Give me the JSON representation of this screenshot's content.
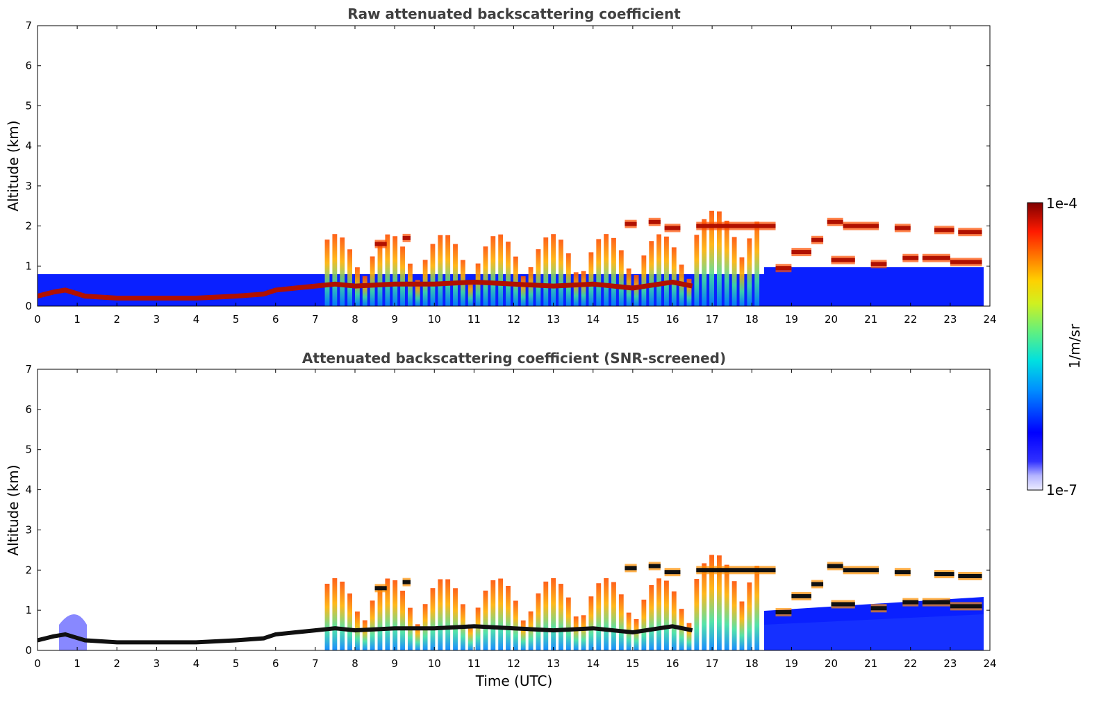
{
  "chart_data": [
    {
      "type": "heatmap",
      "title": "Raw attenuated backscattering coefficient",
      "xlabel": "",
      "ylabel": "Altitude (km)",
      "xlim": [
        0,
        24
      ],
      "ylim": [
        0,
        7
      ],
      "xticks": [
        "0",
        "1",
        "2",
        "3",
        "4",
        "5",
        "6",
        "7",
        "8",
        "9",
        "10",
        "11",
        "12",
        "13",
        "14",
        "15",
        "16",
        "17",
        "18",
        "19",
        "20",
        "21",
        "22",
        "23",
        "24"
      ],
      "yticks": [
        "0",
        "1",
        "2",
        "3",
        "4",
        "5",
        "6",
        "7"
      ],
      "boundary_layer_top_km": [
        [
          0,
          0.25
        ],
        [
          0.4,
          0.35
        ],
        [
          0.7,
          0.4
        ],
        [
          1.2,
          0.25
        ],
        [
          2,
          0.2
        ],
        [
          3,
          0.2
        ],
        [
          4,
          0.2
        ],
        [
          5,
          0.25
        ],
        [
          5.7,
          0.3
        ],
        [
          6,
          0.4
        ],
        [
          6.5,
          0.45
        ],
        [
          7,
          0.5
        ],
        [
          7.5,
          0.55
        ],
        [
          8,
          0.5
        ],
        [
          9,
          0.55
        ],
        [
          10,
          0.55
        ],
        [
          11,
          0.6
        ],
        [
          12,
          0.55
        ],
        [
          13,
          0.5
        ],
        [
          14,
          0.55
        ],
        [
          15,
          0.45
        ],
        [
          16,
          0.6
        ],
        [
          16.5,
          0.5
        ]
      ],
      "cloud_segments": [
        {
          "x": [
            16.6,
            18.6
          ],
          "y": 2.0
        },
        {
          "x": [
            19.9,
            20.3
          ],
          "y": 2.1
        },
        {
          "x": [
            20.3,
            21.2
          ],
          "y": 2.0
        },
        {
          "x": [
            21.6,
            22.0
          ],
          "y": 1.95
        },
        {
          "x": [
            22.6,
            23.1
          ],
          "y": 1.9
        },
        {
          "x": [
            23.2,
            23.8
          ],
          "y": 1.85
        },
        {
          "x": [
            14.8,
            15.1
          ],
          "y": 2.05
        },
        {
          "x": [
            15.4,
            15.7
          ],
          "y": 2.1
        },
        {
          "x": [
            15.8,
            16.2
          ],
          "y": 1.95
        },
        {
          "x": [
            8.5,
            8.8
          ],
          "y": 1.55
        },
        {
          "x": [
            9.2,
            9.4
          ],
          "y": 1.7
        },
        {
          "x": [
            19.5,
            19.8
          ],
          "y": 1.65
        },
        {
          "x": [
            19.0,
            19.5
          ],
          "y": 1.35
        },
        {
          "x": [
            20.0,
            20.6
          ],
          "y": 1.15
        },
        {
          "x": [
            21.0,
            21.4
          ],
          "y": 1.05
        },
        {
          "x": [
            21.8,
            22.2
          ],
          "y": 1.2
        },
        {
          "x": [
            22.3,
            23.0
          ],
          "y": 1.2
        },
        {
          "x": [
            23.0,
            23.8
          ],
          "y": 1.1
        },
        {
          "x": [
            18.6,
            19.0
          ],
          "y": 0.95
        }
      ]
    },
    {
      "type": "heatmap",
      "title": "Attenuated backscattering coefficient (SNR-screened)",
      "xlabel": "Time (UTC)",
      "ylabel": "Altitude (km)",
      "xlim": [
        0,
        24
      ],
      "ylim": [
        0,
        7
      ],
      "xticks": [
        "0",
        "1",
        "2",
        "3",
        "4",
        "5",
        "6",
        "7",
        "8",
        "9",
        "10",
        "11",
        "12",
        "13",
        "14",
        "15",
        "16",
        "17",
        "18",
        "19",
        "20",
        "21",
        "22",
        "23",
        "24"
      ],
      "yticks": [
        "0",
        "1",
        "2",
        "3",
        "4",
        "5",
        "6",
        "7"
      ]
    }
  ],
  "colorbar": {
    "label": "1/m/sr",
    "max_label": "1e-4",
    "min_label": "1e-7",
    "colormap": "jet",
    "colors": [
      "#ececff",
      "#c8c8ff",
      "#9a9aff",
      "#0000ff",
      "#0050ff",
      "#00a0ff",
      "#00e0e0",
      "#40f0a0",
      "#a0f040",
      "#e0e020",
      "#ffc000",
      "#ff7000",
      "#ff2000",
      "#c00000",
      "#7f0000"
    ]
  }
}
